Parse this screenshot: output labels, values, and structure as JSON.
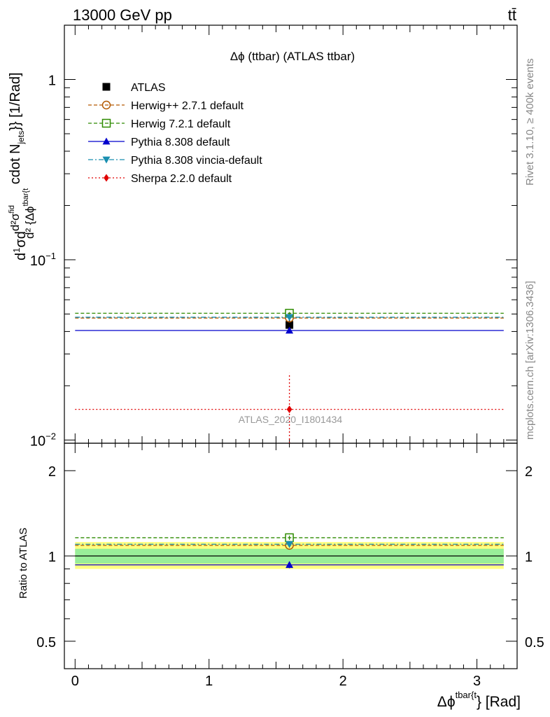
{
  "header": {
    "left": "13000 GeV pp",
    "right": "tt̄"
  },
  "side_labels": {
    "rivet": "Rivet 3.1.10, ≥ 400k events",
    "mcplots": "mcplots.cern.ch [arXiv:1306.3436]"
  },
  "chart_data": [
    {
      "type": "line",
      "title": "Δϕ (ttbar) (ATLAS ttbar)",
      "analysis_label": "ATLAS_2020_I1801434",
      "ylabel": "d¹/σ d²σᶠⁱᵈ / d²{Δϕᵗᵇᵃʳ⁽ᵗ} cdot Nⱼₑₜₛ}} [1/Rad]",
      "ylabel_parts": {
        "d1": "d",
        "one": "1",
        "sigma_num": "σ",
        "d2": "d",
        "frac_num": "d²σ",
        "frac_num_sup": "fid",
        "frac_den": "d² {Δϕ",
        "frac_den_sup": "tbar{t",
        "rest": " cdot N",
        "rest_sub": "jets",
        "rest_end": "}} [1/Rad]"
      },
      "xlabel_parts": {
        "main": "Δϕ",
        "sup": "tbar{t",
        "end": "} [Rad]"
      },
      "xlim": [
        -0.08,
        3.3
      ],
      "ylim": [
        0.0096,
        2.0
      ],
      "yscale": "log",
      "yticks_labeled": [
        {
          "value": 1,
          "label": "1"
        },
        {
          "value": 0.1,
          "label": "10",
          "sup": "−1"
        },
        {
          "value": 0.01,
          "label": "10",
          "sup": "−2"
        }
      ],
      "bin_edges": [
        0,
        3.2
      ],
      "bin_center": 1.6,
      "legend_placement": "top-left",
      "series": [
        {
          "name": "ATLAS",
          "y": 0.0435,
          "yerr": 0.0035,
          "color": "#000000",
          "marker": "filled-square",
          "style": "points"
        },
        {
          "name": "Herwig++ 2.7.1 default",
          "y": 0.0475,
          "yerr": 0.0008,
          "color": "#b35900",
          "marker": "open-circle",
          "style": "dashed"
        },
        {
          "name": "Herwig 7.2.1 default",
          "y": 0.0505,
          "yerr": 0.0008,
          "color": "#2e8b00",
          "marker": "open-square",
          "style": "dashed"
        },
        {
          "name": "Pythia 8.308 default",
          "y": 0.0405,
          "yerr": 0.0008,
          "color": "#0000cc",
          "marker": "filled-triangle-up",
          "style": "solid"
        },
        {
          "name": "Pythia 8.308 vincia-default",
          "y": 0.048,
          "yerr": 0.0008,
          "color": "#1a8fb0",
          "marker": "filled-triangle-down",
          "style": "dashdot"
        },
        {
          "name": "Sherpa 2.2.0 default",
          "y": 0.0148,
          "yerr_low": 0.0072,
          "yerr_high": 0.0087,
          "color": "#e00000",
          "marker": "filled-diamond",
          "style": "dotted"
        }
      ]
    },
    {
      "type": "line",
      "title": "",
      "ylabel": "Ratio to ATLAS",
      "xlim": [
        -0.08,
        3.3
      ],
      "ylim": [
        0.4,
        2.5
      ],
      "yscale": "log",
      "yticks_labeled": [
        {
          "value": 0.5,
          "label": "0.5"
        },
        {
          "value": 1,
          "label": "1"
        },
        {
          "value": 2,
          "label": "2"
        }
      ],
      "xticks_labeled": [
        {
          "value": 0,
          "label": "0"
        },
        {
          "value": 1,
          "label": "1"
        },
        {
          "value": 2,
          "label": "2"
        },
        {
          "value": 3,
          "label": "3"
        }
      ],
      "bands": [
        {
          "name": "total uncertainty",
          "low": 0.9,
          "high": 1.12,
          "color": "#ffff80"
        },
        {
          "name": "statistical uncertainty",
          "low": 0.94,
          "high": 1.06,
          "color": "#99ee99"
        }
      ],
      "series": [
        {
          "name": "ATLAS",
          "y": 1.0,
          "color": "#000000",
          "style": "solid-thin"
        },
        {
          "name": "Herwig++ 2.7.1 default",
          "y": 1.09,
          "yerr": 0.02,
          "color": "#b35900",
          "marker": "open-circle",
          "style": "dashed"
        },
        {
          "name": "Herwig 7.2.1 default",
          "y": 1.16,
          "yerr": 0.02,
          "color": "#2e8b00",
          "marker": "open-square",
          "style": "dashed"
        },
        {
          "name": "Pythia 8.308 default",
          "y": 0.93,
          "yerr": 0.025,
          "color": "#0000cc",
          "marker": "filled-triangle-up",
          "style": "solid"
        },
        {
          "name": "Pythia 8.308 vincia-default",
          "y": 1.1,
          "yerr": 0.02,
          "color": "#1a8fb0",
          "marker": "filled-triangle-down",
          "style": "dashdot"
        }
      ]
    }
  ]
}
